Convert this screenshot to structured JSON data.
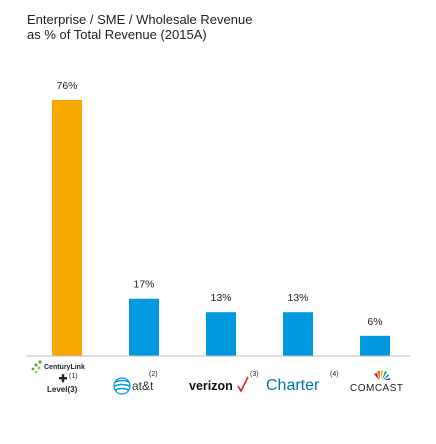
{
  "chart_data": {
    "type": "bar",
    "title": "Enterprise / SME / Wholesale Revenue",
    "subtitle": "as % of Total Revenue (2015A)",
    "categories": [
      "CenturyLink / Level(3)",
      "AT&T",
      "Verizon",
      "Charter",
      "Comcast"
    ],
    "values": [
      76,
      17,
      13,
      13,
      6
    ],
    "value_labels": [
      "76%",
      "17%",
      "13%",
      "13%",
      "6%"
    ],
    "ylim": [
      0,
      80
    ],
    "grid": false,
    "legend": "none",
    "colors": [
      "#f5a800",
      "#0099e0",
      "#0099e0",
      "#0099e0",
      "#0099e0"
    ]
  },
  "logos": {
    "centurylink": "CenturyLink",
    "level3": "Level(3)",
    "level3_sup": "(1)",
    "att": "at&t",
    "att_sup": "(2)",
    "verizon": "verizon",
    "verizon_sup": "(3)",
    "charter": "Charter",
    "charter_sup": "(4)",
    "comcast": "COMCAST"
  }
}
